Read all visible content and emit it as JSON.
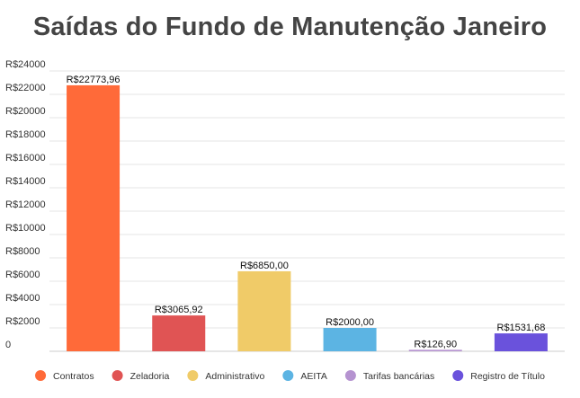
{
  "chart_data": {
    "type": "bar",
    "title": "Saídas do Fundo de Manutenção Janeiro",
    "xlabel": "",
    "ylabel": "",
    "ylim": [
      0,
      24000
    ],
    "grid": true,
    "legend_position": "bottom",
    "yticks": [
      "0",
      "R$2000",
      "R$4000",
      "R$6000",
      "R$8000",
      "R$10000",
      "R$12000",
      "R$14000",
      "R$16000",
      "R$18000",
      "R$20000",
      "R$22000",
      "R$24000"
    ],
    "categories": [
      "Contratos",
      "Zeladoria",
      "Administrativo",
      "AEITA",
      "Tarifas bancárias",
      "Registro de Título"
    ],
    "values": [
      22773.96,
      3065.92,
      6850.0,
      2000.0,
      126.9,
      1531.68
    ],
    "data_labels": [
      "R$22773,96",
      "R$3065,92",
      "R$6850,00",
      "R$2000,00",
      "R$126,90",
      "R$1531,68"
    ],
    "colors": [
      "#ff6a39",
      "#e05454",
      "#f0cb68",
      "#5cb4e3",
      "#b593d0",
      "#6a52dc"
    ]
  }
}
